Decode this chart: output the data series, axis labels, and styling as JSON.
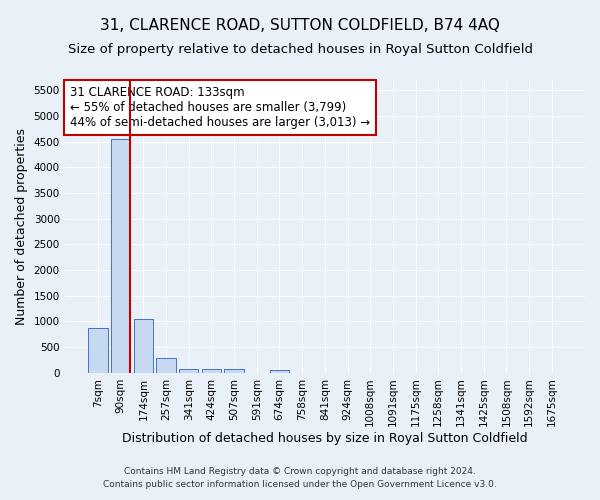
{
  "title": "31, CLARENCE ROAD, SUTTON COLDFIELD, B74 4AQ",
  "subtitle": "Size of property relative to detached houses in Royal Sutton Coldfield",
  "xlabel": "Distribution of detached houses by size in Royal Sutton Coldfield",
  "ylabel": "Number of detached properties",
  "footnote1": "Contains HM Land Registry data © Crown copyright and database right 2024.",
  "footnote2": "Contains public sector information licensed under the Open Government Licence v3.0.",
  "bar_labels": [
    "7sqm",
    "90sqm",
    "174sqm",
    "257sqm",
    "341sqm",
    "424sqm",
    "507sqm",
    "591sqm",
    "674sqm",
    "758sqm",
    "841sqm",
    "924sqm",
    "1008sqm",
    "1091sqm",
    "1175sqm",
    "1258sqm",
    "1341sqm",
    "1425sqm",
    "1508sqm",
    "1592sqm",
    "1675sqm"
  ],
  "bar_values": [
    870,
    4560,
    1050,
    280,
    80,
    75,
    75,
    0,
    55,
    0,
    0,
    0,
    0,
    0,
    0,
    0,
    0,
    0,
    0,
    0,
    0
  ],
  "bar_color": "#c6d9f0",
  "bar_edgecolor": "#4472c4",
  "property_line_x": 1.43,
  "property_line_color": "#c00000",
  "annotation_text": "31 CLARENCE ROAD: 133sqm\n← 55% of detached houses are smaller (3,799)\n44% of semi-detached houses are larger (3,013) →",
  "annotation_box_color": "#c00000",
  "ylim": [
    0,
    5700
  ],
  "yticks": [
    0,
    500,
    1000,
    1500,
    2000,
    2500,
    3000,
    3500,
    4000,
    4500,
    5000,
    5500
  ],
  "bg_color": "#eaf0f8",
  "plot_bg_color": "#eaf0f8",
  "grid_color": "#ffffff",
  "title_fontsize": 11,
  "subtitle_fontsize": 9.5,
  "axis_label_fontsize": 9,
  "tick_fontsize": 7.5,
  "annotation_fontsize": 8.5,
  "footnote_fontsize": 6.5
}
